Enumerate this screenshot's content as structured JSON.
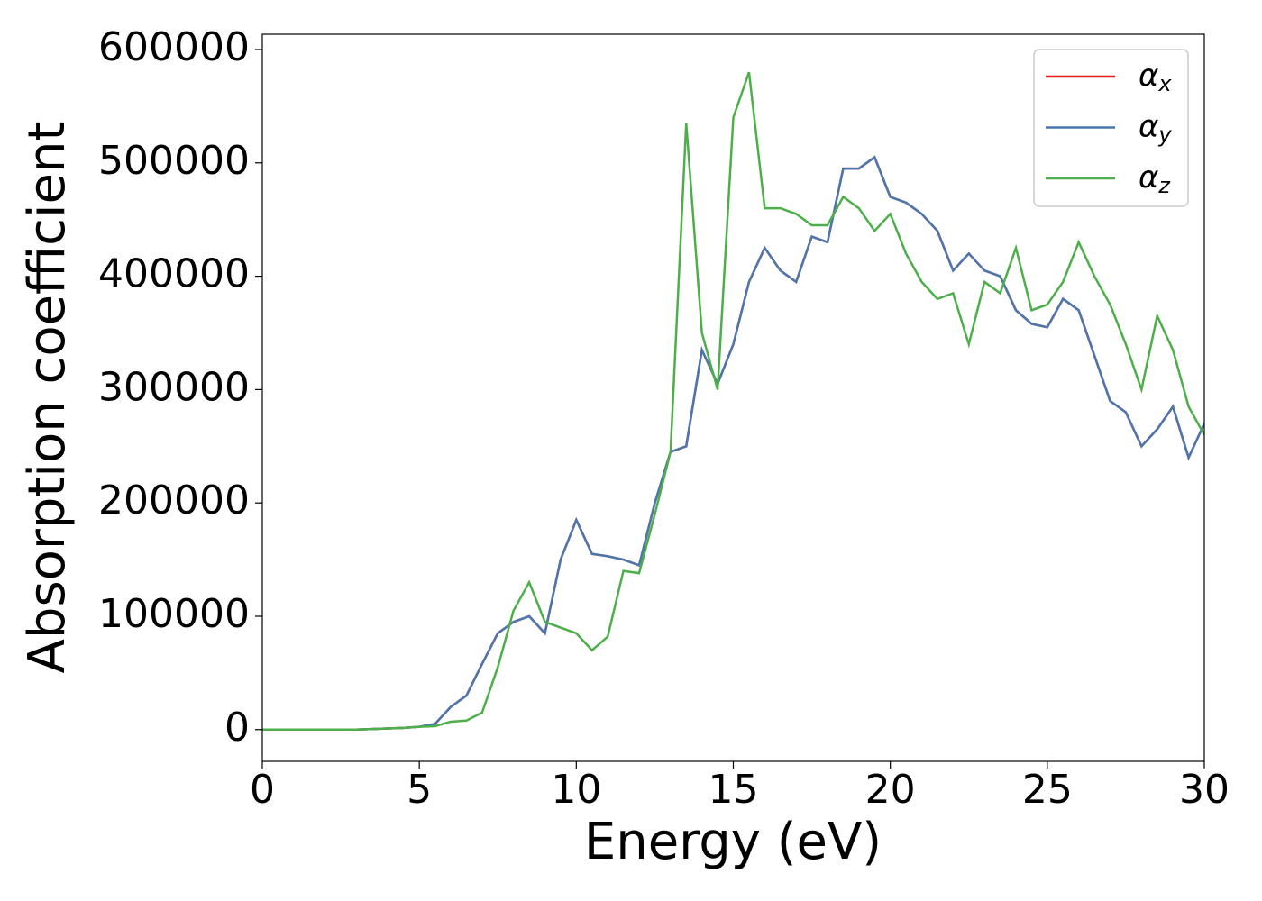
{
  "chart_data": {
    "type": "line",
    "x_label": "Energy (eV)",
    "y_label": "Absorption coefficient",
    "x": [
      0,
      0.5,
      1,
      1.5,
      2,
      2.5,
      3,
      3.5,
      4,
      4.5,
      5,
      5.5,
      6,
      6.5,
      7,
      7.5,
      8,
      8.5,
      9,
      9.5,
      10,
      10.5,
      11,
      11.5,
      12,
      12.5,
      13,
      13.5,
      14,
      14.5,
      15,
      15.5,
      16,
      16.5,
      17,
      17.5,
      18,
      18.5,
      19,
      19.5,
      20,
      20.5,
      21,
      21.5,
      22,
      22.5,
      23,
      23.5,
      24,
      24.5,
      25,
      25.5,
      26,
      26.5,
      27,
      27.5,
      28,
      28.5,
      29,
      29.5,
      30
    ],
    "series": [
      {
        "name": "αx",
        "color": "#e41a1c",
        "values": [
          0,
          0,
          0,
          0,
          0,
          0,
          0,
          500,
          1000,
          1500,
          2500,
          5000,
          20000,
          30000,
          58000,
          85000,
          95000,
          100000,
          85000,
          150000,
          185000,
          155000,
          153000,
          150000,
          145000,
          200000,
          245000,
          250000,
          335000,
          305000,
          340000,
          395000,
          425000,
          405000,
          395000,
          435000,
          430000,
          495000,
          495000,
          505000,
          470000,
          465000,
          455000,
          440000,
          405000,
          420000,
          405000,
          400000,
          370000,
          358000,
          355000,
          380000,
          370000,
          330000,
          290000,
          280000,
          250000,
          265000,
          285000,
          240000,
          270000
        ]
      },
      {
        "name": "αy",
        "color": "#4a78ae",
        "values": [
          0,
          0,
          0,
          0,
          0,
          0,
          0,
          500,
          1000,
          1500,
          2500,
          5000,
          20000,
          30000,
          58000,
          85000,
          95000,
          100000,
          85000,
          150000,
          185000,
          155000,
          153000,
          150000,
          145000,
          200000,
          245000,
          250000,
          335000,
          305000,
          340000,
          395000,
          425000,
          405000,
          395000,
          435000,
          430000,
          495000,
          495000,
          505000,
          470000,
          465000,
          455000,
          440000,
          405000,
          420000,
          405000,
          400000,
          370000,
          358000,
          355000,
          380000,
          370000,
          330000,
          290000,
          280000,
          250000,
          265000,
          285000,
          240000,
          270000
        ]
      },
      {
        "name": "αz",
        "color": "#4daf4a",
        "values": [
          0,
          0,
          0,
          0,
          0,
          0,
          0,
          500,
          1000,
          1500,
          2500,
          3000,
          7000,
          8000,
          15000,
          55000,
          105000,
          130000,
          95000,
          90000,
          85000,
          70000,
          82000,
          140000,
          138000,
          190000,
          245000,
          535000,
          350000,
          300000,
          540000,
          580000,
          460000,
          460000,
          455000,
          445000,
          445000,
          470000,
          460000,
          440000,
          455000,
          420000,
          395000,
          380000,
          385000,
          340000,
          395000,
          385000,
          425000,
          370000,
          375000,
          395000,
          430000,
          400000,
          375000,
          340000,
          300000,
          365000,
          335000,
          285000,
          260000
        ]
      }
    ],
    "xlim": [
      0,
      30
    ],
    "xticks": [
      0,
      5,
      10,
      15,
      20,
      25,
      30
    ],
    "ylim": [
      -28000,
      613500
    ],
    "yticks": [
      0,
      100000,
      200000,
      300000,
      400000,
      500000,
      600000
    ],
    "grid": false,
    "legend": "upper right"
  }
}
